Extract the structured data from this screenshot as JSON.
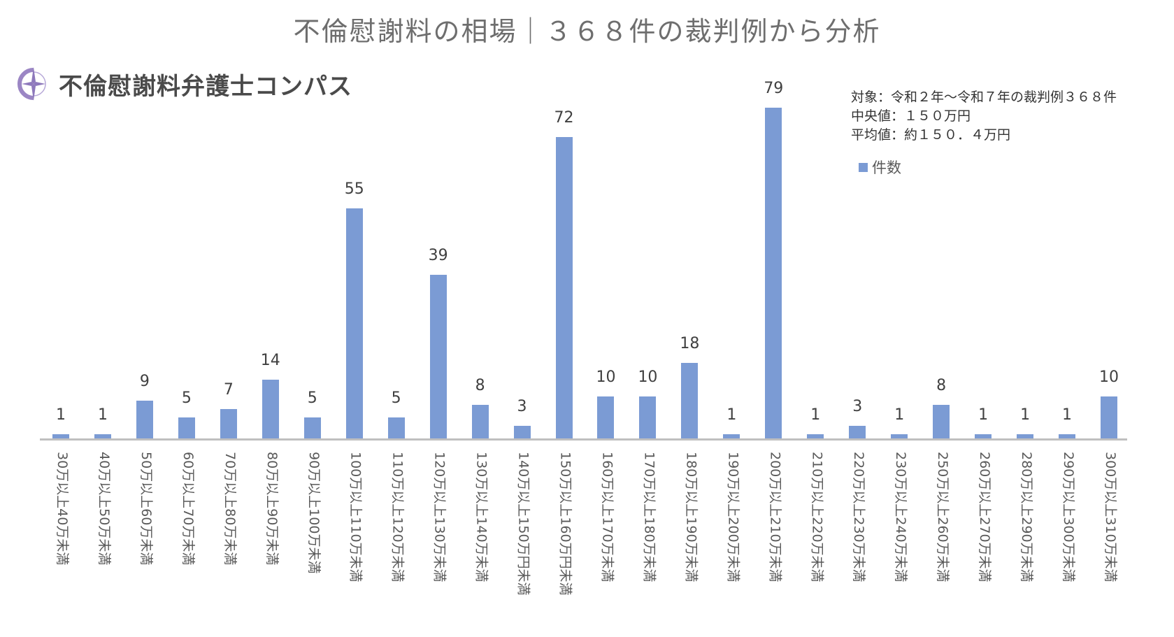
{
  "header": {
    "title": "不倫慰謝料の相場｜３６８件の裁判例から分析",
    "logo_text": "不倫慰謝料弁護士コンパス",
    "logo_icon": "compass-icon"
  },
  "info_box": {
    "lines": [
      "対象：令和２年〜令和７年の裁判例３６８件",
      "中央値：１５０万円",
      "平均値：約１５０．４万円"
    ]
  },
  "legend": {
    "label": "件数",
    "color": "#7b9bd4"
  },
  "colors": {
    "bar": "#7b9bd4",
    "axis": "#bfbfbf",
    "logo_accent": "#9b86c4"
  },
  "chart_data": {
    "type": "bar",
    "title": "不倫慰謝料の相場｜３６８件の裁判例から分析",
    "xlabel": "",
    "ylabel": "",
    "ylim": [
      0,
      80
    ],
    "grid": false,
    "legend_position": "top-right",
    "series": [
      {
        "name": "件数",
        "values": [
          1,
          1,
          9,
          5,
          7,
          14,
          5,
          55,
          5,
          39,
          8,
          3,
          72,
          10,
          10,
          18,
          1,
          79,
          1,
          3,
          1,
          8,
          1,
          1,
          1,
          10
        ]
      }
    ],
    "categories": [
      "30万以上40万未満",
      "40万以上50万未満",
      "50万以上60万未満",
      "60万以上70万未満",
      "70万以上80万未満",
      "80万以上90万未満",
      "90万以上100万未満",
      "100万以上110万未満",
      "110万以上120万未満",
      "120万以上130万未満",
      "130万以上140万未満",
      "140万以上150万円未満",
      "150万以上160万円未満",
      "160万以上170万未満",
      "170万以上180万未満",
      "180万以上190万未満",
      "190万以上200万未満",
      "200万以上210万未満",
      "210万以上220万未満",
      "220万以上230万未満",
      "230万以上240万未満",
      "250万以上260万未満",
      "260万以上270万未満",
      "280万以上290万未満",
      "290万以上300万未満",
      "300万以上310万未満"
    ],
    "values": [
      1,
      1,
      9,
      5,
      7,
      14,
      5,
      55,
      5,
      39,
      8,
      3,
      72,
      10,
      10,
      18,
      1,
      79,
      1,
      3,
      1,
      8,
      1,
      1,
      1,
      10
    ],
    "annotations": [
      "対象：令和２年〜令和７年の裁判例３６８件",
      "中央値：１５０万円",
      "平均値：約１５０．４万円"
    ]
  }
}
